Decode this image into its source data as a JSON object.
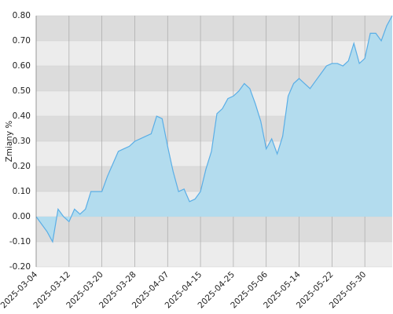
{
  "chart_data": {
    "type": "area",
    "y_label": "Zmiany %",
    "categories": [
      "2025-03-04",
      null,
      null,
      null,
      null,
      null,
      "2025-03-12",
      null,
      null,
      null,
      null,
      null,
      "2025-03-20",
      null,
      null,
      null,
      null,
      null,
      "2025-03-28",
      null,
      null,
      null,
      null,
      null,
      "2025-04-07",
      null,
      null,
      null,
      null,
      null,
      "2025-04-15",
      null,
      null,
      null,
      null,
      null,
      "2025-04-25",
      null,
      null,
      null,
      null,
      null,
      "2025-05-06",
      null,
      null,
      null,
      null,
      null,
      "2025-05-14",
      null,
      null,
      null,
      null,
      null,
      "2025-05-22",
      null,
      null,
      null,
      null,
      null,
      "2025-05-30",
      null,
      null,
      null,
      null,
      null
    ],
    "values": [
      0.0,
      -0.03,
      -0.06,
      -0.1,
      0.03,
      0.0,
      -0.02,
      0.03,
      0.01,
      0.03,
      0.1,
      0.1,
      0.1,
      0.16,
      0.21,
      0.26,
      0.27,
      0.28,
      0.3,
      0.31,
      0.32,
      0.33,
      0.4,
      0.39,
      0.28,
      0.18,
      0.1,
      0.11,
      0.06,
      0.07,
      0.1,
      0.19,
      0.26,
      0.41,
      0.43,
      0.47,
      0.48,
      0.5,
      0.53,
      0.51,
      0.45,
      0.38,
      0.27,
      0.31,
      0.25,
      0.32,
      0.48,
      0.53,
      0.55,
      0.53,
      0.51,
      0.54,
      0.57,
      0.6,
      0.61,
      0.61,
      0.6,
      0.62,
      0.69,
      0.61,
      0.63,
      0.73,
      0.73,
      0.7,
      0.76,
      0.8
    ],
    "color": "#5aaee6",
    "fill_color": "#b3dcee",
    "band_colors": [
      "#dcdcdc",
      "#ececec"
    ],
    "grid": true,
    "ylim": [
      -0.2,
      0.8
    ],
    "yticks": [
      {
        "value": -0.2,
        "label": "-0.20"
      },
      {
        "value": -0.1,
        "label": "-0.10"
      },
      {
        "value": 0,
        "label": "0.00"
      },
      {
        "value": 0.1,
        "label": "0.10"
      },
      {
        "value": 0.2,
        "label": "0.20"
      },
      {
        "value": 0.3,
        "label": "0.30"
      },
      {
        "value": 0.4,
        "label": "0.40"
      },
      {
        "value": 0.5,
        "label": "0.50"
      },
      {
        "value": 0.6,
        "label": "0.60"
      },
      {
        "value": 0.7,
        "label": "0.70"
      },
      {
        "value": 0.8,
        "label": "0.80"
      }
    ]
  }
}
